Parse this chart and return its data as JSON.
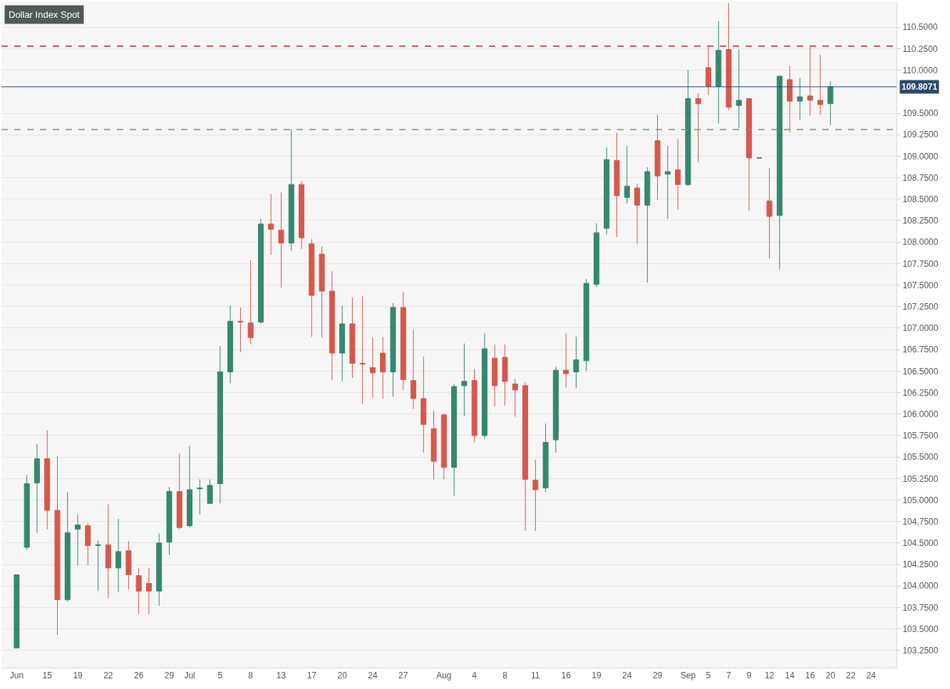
{
  "chart_data": {
    "type": "candlestick",
    "title": "Dollar Index Spot",
    "categories": [
      "Jun",
      null,
      null,
      "15",
      null,
      null,
      "19",
      null,
      null,
      "22",
      null,
      null,
      "26",
      null,
      null,
      "29",
      null,
      "Jul",
      null,
      null,
      "5",
      null,
      null,
      "8",
      null,
      null,
      "13",
      null,
      null,
      "17",
      null,
      null,
      "20",
      null,
      null,
      "24",
      null,
      null,
      "27",
      null,
      null,
      null,
      "Aug",
      null,
      null,
      "4",
      null,
      null,
      "8",
      null,
      null,
      "11",
      null,
      null,
      "16",
      null,
      null,
      "19",
      null,
      null,
      "24",
      null,
      null,
      "29",
      null,
      null,
      "Sep",
      null,
      "5",
      null,
      "7",
      null,
      "9",
      null,
      "12",
      null,
      "14",
      null,
      "16",
      null,
      "20",
      null,
      "22",
      null,
      "24",
      null,
      null
    ],
    "ohlc": [
      [
        103.28,
        104.13,
        103.28,
        104.13
      ],
      [
        104.45,
        105.29,
        104.42,
        105.19
      ],
      [
        105.2,
        105.65,
        104.62,
        105.48
      ],
      [
        105.48,
        105.81,
        104.66,
        104.88
      ],
      [
        104.88,
        105.51,
        103.43,
        103.84
      ],
      [
        103.84,
        105.09,
        103.82,
        104.62
      ],
      [
        104.66,
        104.83,
        104.24,
        104.71
      ],
      [
        104.7,
        104.73,
        104.24,
        104.47
      ],
      [
        104.47,
        104.53,
        103.94,
        104.48
      ],
      [
        104.48,
        104.95,
        103.86,
        104.21
      ],
      [
        104.21,
        104.78,
        103.93,
        104.4
      ],
      [
        104.41,
        104.52,
        103.96,
        104.13
      ],
      [
        104.12,
        104.21,
        103.67,
        103.94
      ],
      [
        104.03,
        104.21,
        103.67,
        103.94
      ],
      [
        103.94,
        104.61,
        103.77,
        104.5
      ],
      [
        104.51,
        105.15,
        104.36,
        105.1
      ],
      [
        105.1,
        105.54,
        104.66,
        104.68
      ],
      [
        104.7,
        105.63,
        104.68,
        105.12
      ],
      [
        105.13,
        105.24,
        104.83,
        105.14
      ],
      [
        104.96,
        105.24,
        104.95,
        105.17
      ],
      [
        105.19,
        106.79,
        104.96,
        106.49
      ],
      [
        106.49,
        107.26,
        106.36,
        107.08
      ],
      [
        107.08,
        107.24,
        106.72,
        107.07
      ],
      [
        107.06,
        107.79,
        106.81,
        106.89
      ],
      [
        107.07,
        108.27,
        107.05,
        108.21
      ],
      [
        108.21,
        108.56,
        107.85,
        108.15
      ],
      [
        108.14,
        108.58,
        107.47,
        107.99
      ],
      [
        107.99,
        109.31,
        107.9,
        108.67
      ],
      [
        108.67,
        108.71,
        107.92,
        108.05
      ],
      [
        107.98,
        108.04,
        106.9,
        107.38
      ],
      [
        107.86,
        107.95,
        106.89,
        107.43
      ],
      [
        107.43,
        107.66,
        106.4,
        106.71
      ],
      [
        106.71,
        107.26,
        106.38,
        107.05
      ],
      [
        107.05,
        107.36,
        106.42,
        106.59
      ],
      [
        106.59,
        107.37,
        106.12,
        106.58
      ],
      [
        106.54,
        106.89,
        106.19,
        106.48
      ],
      [
        106.71,
        106.9,
        106.18,
        106.49
      ],
      [
        106.49,
        107.29,
        106.2,
        107.24
      ],
      [
        107.24,
        107.42,
        106.28,
        106.4
      ],
      [
        106.39,
        106.98,
        106.06,
        106.18
      ],
      [
        106.18,
        106.67,
        105.55,
        105.88
      ],
      [
        105.83,
        106.04,
        105.24,
        105.45
      ],
      [
        105.99,
        106.01,
        105.24,
        105.38
      ],
      [
        105.38,
        106.35,
        105.05,
        106.32
      ],
      [
        106.33,
        106.82,
        105.98,
        106.38
      ],
      [
        106.39,
        106.52,
        105.67,
        105.75
      ],
      [
        105.75,
        106.94,
        105.71,
        106.76
      ],
      [
        106.65,
        106.81,
        106.09,
        106.33
      ],
      [
        106.66,
        106.81,
        106.1,
        106.38
      ],
      [
        106.35,
        106.41,
        105.97,
        106.28
      ],
      [
        106.33,
        106.37,
        104.64,
        105.24
      ],
      [
        105.23,
        105.47,
        104.64,
        105.12
      ],
      [
        105.14,
        105.89,
        105.09,
        105.67
      ],
      [
        105.7,
        106.55,
        105.55,
        106.51
      ],
      [
        106.51,
        106.94,
        106.31,
        106.47
      ],
      [
        106.49,
        106.9,
        106.3,
        106.63
      ],
      [
        106.62,
        107.57,
        106.5,
        107.52
      ],
      [
        107.51,
        108.22,
        107.48,
        108.11
      ],
      [
        108.16,
        109.1,
        108.09,
        108.96
      ],
      [
        108.95,
        109.27,
        108.06,
        108.54
      ],
      [
        108.52,
        109.12,
        108.45,
        108.65
      ],
      [
        108.63,
        108.68,
        107.98,
        108.43
      ],
      [
        108.43,
        108.87,
        107.53,
        108.82
      ],
      [
        109.18,
        109.48,
        108.49,
        108.77
      ],
      [
        108.79,
        109.12,
        108.27,
        108.82
      ],
      [
        108.84,
        109.2,
        108.38,
        108.67
      ],
      [
        108.67,
        110.0,
        108.65,
        109.67
      ],
      [
        109.67,
        109.73,
        108.93,
        109.61
      ],
      [
        110.03,
        110.28,
        109.71,
        109.81
      ],
      [
        109.81,
        110.57,
        109.38,
        110.23
      ],
      [
        110.24,
        110.78,
        109.54,
        109.57
      ],
      [
        109.59,
        110.24,
        109.33,
        109.65
      ],
      [
        109.67,
        109.67,
        108.36,
        108.98
      ],
      [
        108.98,
        108.98,
        108.98,
        108.98
      ],
      [
        108.48,
        108.86,
        107.81,
        108.3
      ],
      [
        108.31,
        109.93,
        107.68,
        109.93
      ],
      [
        109.89,
        110.05,
        109.28,
        109.64
      ],
      [
        109.64,
        109.91,
        109.42,
        109.69
      ],
      [
        109.7,
        110.27,
        109.47,
        109.65
      ],
      [
        109.65,
        110.18,
        109.48,
        109.6
      ],
      [
        109.61,
        109.87,
        109.36,
        109.8071
      ],
      null,
      null,
      null,
      null,
      null,
      null
    ],
    "colors": [
      "#35876f",
      "#35876f",
      "#35876f",
      "#d6584a",
      "#d6584a",
      "#35876f",
      "#35876f",
      "#d6584a",
      "#35876f",
      "#d6584a",
      "#35876f",
      "#d6584a",
      "#d6584a",
      "#d6584a",
      "#35876f",
      "#35876f",
      "#d6584a",
      "#35876f",
      "#35876f",
      "#35876f",
      "#35876f",
      "#35876f",
      "#d6584a",
      "#d6584a",
      "#35876f",
      "#d6584a",
      "#d6584a",
      "#35876f",
      "#d6584a",
      "#d6584a",
      "#d6584a",
      "#d6584a",
      "#35876f",
      "#d6584a",
      "#d6584a",
      "#d6584a",
      "#d6584a",
      "#35876f",
      "#d6584a",
      "#d6584a",
      "#d6584a",
      "#d6584a",
      "#d6584a",
      "#35876f",
      "#35876f",
      "#d6584a",
      "#35876f",
      "#d6584a",
      "#d6584a",
      "#d6584a",
      "#d6584a",
      "#d6584a",
      "#35876f",
      "#35876f",
      "#d6584a",
      "#35876f",
      "#35876f",
      "#35876f",
      "#35876f",
      "#d6584a",
      "#35876f",
      "#d6584a",
      "#35876f",
      "#d6584a",
      "#35876f",
      "#d6584a",
      "#35876f",
      "#d6584a",
      "#d6584a",
      "#35876f",
      "#d6584a",
      "#35876f",
      "#d6584a",
      "#555555",
      "#d6584a",
      "#35876f",
      "#d6584a",
      "#35876f",
      "#d6584a",
      "#d6584a",
      "#35876f",
      null,
      null,
      null,
      null,
      null,
      null
    ],
    "ylim": [
      103.05,
      110.8
    ],
    "yticks": [
      {
        "value": 103.25,
        "label": "103.2500"
      },
      {
        "value": 103.5,
        "label": "103.5000"
      },
      {
        "value": 103.75,
        "label": "103.7500"
      },
      {
        "value": 104.0,
        "label": "104.0000"
      },
      {
        "value": 104.25,
        "label": "104.2500"
      },
      {
        "value": 104.5,
        "label": "104.5000"
      },
      {
        "value": 104.75,
        "label": "104.7500"
      },
      {
        "value": 105.0,
        "label": "105.0000"
      },
      {
        "value": 105.25,
        "label": "105.2500"
      },
      {
        "value": 105.5,
        "label": "105.5000"
      },
      {
        "value": 105.75,
        "label": "105.7500"
      },
      {
        "value": 106.0,
        "label": "106.0000"
      },
      {
        "value": 106.25,
        "label": "106.2500"
      },
      {
        "value": 106.5,
        "label": "106.5000"
      },
      {
        "value": 106.75,
        "label": "106.7500"
      },
      {
        "value": 107.0,
        "label": "107.0000"
      },
      {
        "value": 107.25,
        "label": "107.2500"
      },
      {
        "value": 107.5,
        "label": "107.5000"
      },
      {
        "value": 107.75,
        "label": "107.7500"
      },
      {
        "value": 108.0,
        "label": "108.0000"
      },
      {
        "value": 108.25,
        "label": "108.2500"
      },
      {
        "value": 108.5,
        "label": "108.5000"
      },
      {
        "value": 108.75,
        "label": "108.7500"
      },
      {
        "value": 109.0,
        "label": "109.0000"
      },
      {
        "value": 109.25,
        "label": "109.2500"
      },
      {
        "value": 109.5,
        "label": "109.5000"
      },
      {
        "value": 110.0,
        "label": "110.0000"
      },
      {
        "value": 110.25,
        "label": "110.2500"
      },
      {
        "value": 110.5,
        "label": "110.5000"
      }
    ],
    "ref_lines": [
      {
        "axis": "y",
        "value": 109.8071,
        "label": "109.8071",
        "color": "#2b4a6b",
        "line_style": "solid"
      },
      {
        "axis": "y",
        "value": 110.28,
        "color": "#cc2222",
        "line_style": "dashed"
      },
      {
        "axis": "y",
        "value": 109.31,
        "color": "#55b047",
        "line_style": "dashed"
      }
    ],
    "grid": "y",
    "legend": false
  }
}
